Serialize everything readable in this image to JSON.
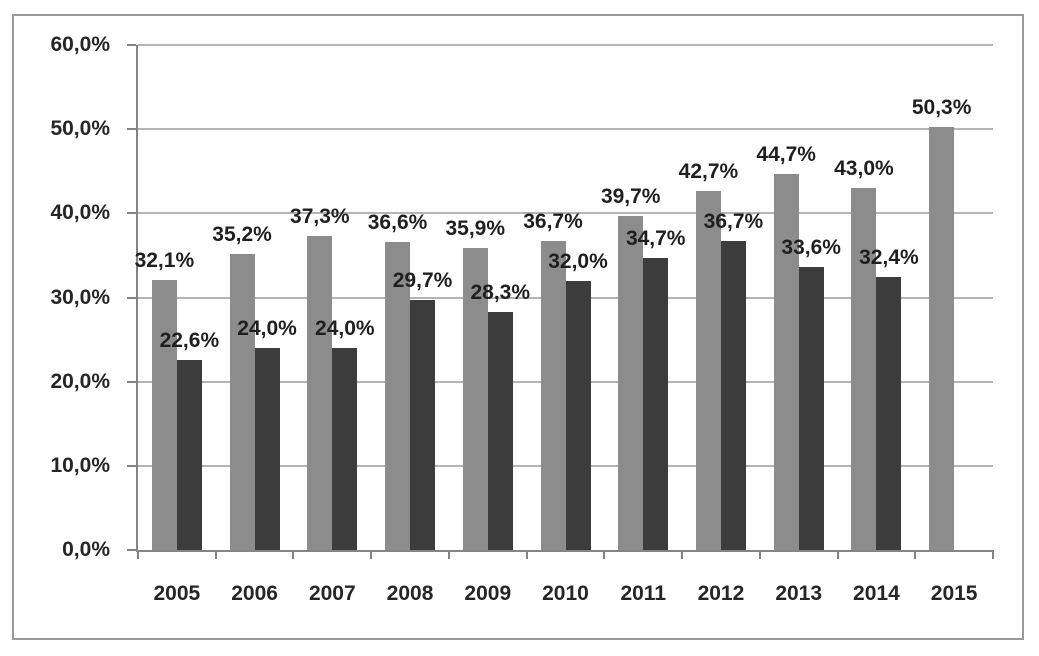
{
  "chart_data": {
    "type": "bar",
    "title": "",
    "xlabel": "",
    "ylabel": "",
    "categories": [
      "2005",
      "2006",
      "2007",
      "2008",
      "2009",
      "2010",
      "2011",
      "2012",
      "2013",
      "2014",
      "2015"
    ],
    "series": [
      {
        "name": "series-1-light-gray",
        "color": "#8c8c8c",
        "values": [
          32.1,
          35.2,
          37.3,
          36.6,
          35.9,
          36.7,
          39.7,
          42.7,
          44.7,
          43.0,
          50.3
        ],
        "labels": [
          "32,1%",
          "35,2%",
          "37,3%",
          "36,6%",
          "35,9%",
          "36,7%",
          "39,7%",
          "42,7%",
          "44,7%",
          "43,0%",
          "50,3%"
        ]
      },
      {
        "name": "series-2-dark-gray",
        "color": "#3c3c3c",
        "values": [
          22.6,
          24.0,
          24.0,
          29.7,
          28.3,
          32.0,
          34.7,
          36.7,
          33.6,
          32.4,
          null
        ],
        "labels": [
          "22,6%",
          "24,0%",
          "24,0%",
          "29,7%",
          "28,3%",
          "32,0%",
          "34,7%",
          "36,7%",
          "33,6%",
          "32,4%",
          null
        ]
      }
    ],
    "ylim": [
      0,
      60
    ],
    "y_tick_step": 10,
    "y_ticks": [
      "0,0%",
      "10,0%",
      "20,0%",
      "30,0%",
      "40,0%",
      "50,0%",
      "60,0%"
    ],
    "grid": true,
    "legend": "none",
    "colors": {
      "value_label": "#1f1f1f",
      "tick_label": "#262626",
      "axis": "#848484",
      "gridline": "#b4b4b4",
      "frame_border": "#9a9a9a",
      "background": "#ffffff"
    }
  }
}
